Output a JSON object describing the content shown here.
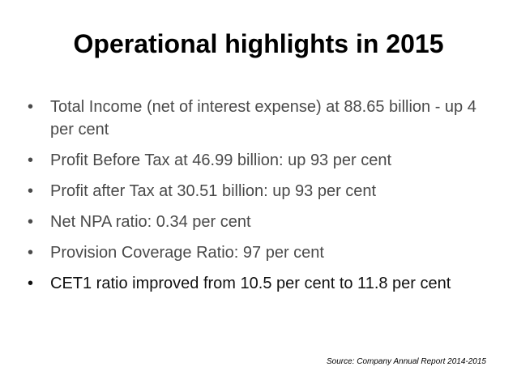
{
  "slide": {
    "title": "Operational highlights in 2015",
    "bullets": [
      {
        "text": "Total Income (net of interest expense) at  88.65 billion - up 4 per cent"
      },
      {
        "text": "Profit Before Tax at  46.99 billion: up 93 per cent"
      },
      {
        "text": "Profit after Tax at  30.51 billion: up 93 per cent"
      },
      {
        "text": "Net NPA ratio: 0.34 per cent"
      },
      {
        "text": "Provision Coverage Ratio: 97 per cent"
      },
      {
        "text": "CET1 ratio improved from 10.5 per cent to 11.8 per cent"
      }
    ],
    "bullet_symbol": "•",
    "source": "Source: Company Annual Report 2014-2015"
  },
  "colors": {
    "background": "#ffffff",
    "title": "#000000",
    "bullet_text": "#4a4a4a",
    "bullet_text_last": "#111111"
  }
}
